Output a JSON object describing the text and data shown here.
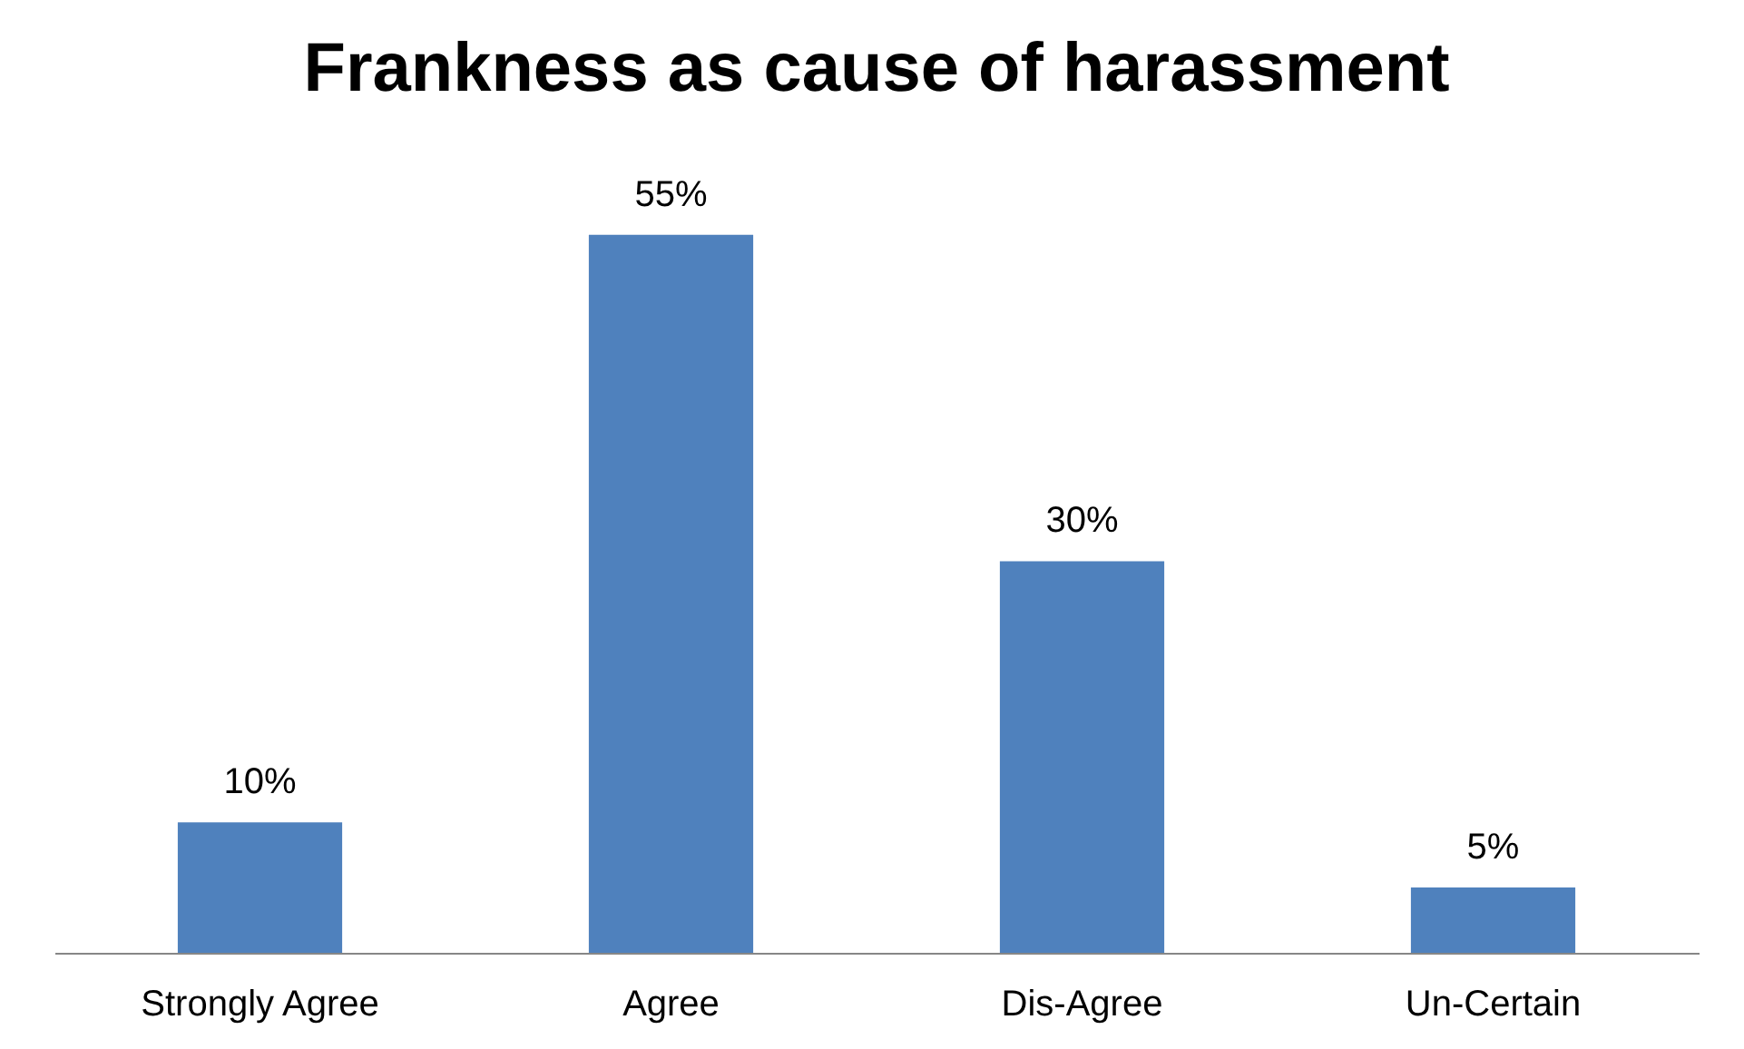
{
  "chart_data": {
    "type": "bar",
    "title": "Frankness as cause of harassment",
    "categories": [
      "Strongly Agree",
      "Agree",
      "Dis-Agree",
      "Un-Certain"
    ],
    "values": [
      10,
      55,
      30,
      5
    ],
    "value_labels": [
      "10%",
      "55%",
      "30%",
      "5%"
    ],
    "color": "#4f81bd",
    "tick_labels": "x"
  }
}
